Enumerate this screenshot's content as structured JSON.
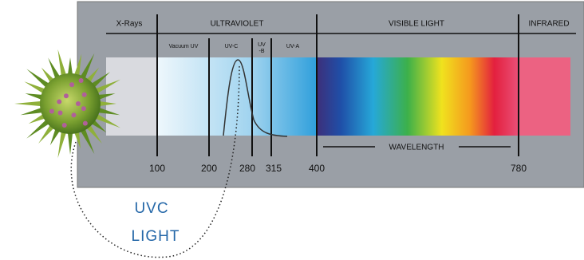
{
  "bands": [
    "X-Rays",
    "ULTRAVIOLET",
    "VISIBLE LIGHT",
    "INFRARED"
  ],
  "sub_bands": [
    "Vacuum UV",
    "UV-C",
    {
      "lines": [
        "UV",
        "-B"
      ]
    },
    "UV-A"
  ],
  "wavelengths": [
    "100",
    "200",
    "280",
    "315",
    "400",
    "780"
  ],
  "axis_label": "WAVELENGTH",
  "caption": [
    "UVC",
    "LIGHT"
  ]
}
